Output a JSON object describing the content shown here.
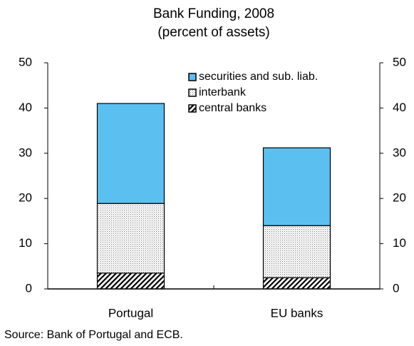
{
  "chart_data": {
    "type": "bar",
    "stacked": true,
    "title": "Bank Funding, 2008",
    "subtitle": "(percent of assets)",
    "source": "Source: Bank of Portugal and ECB.",
    "categories": [
      "Portugal",
      "EU banks"
    ],
    "series": [
      {
        "name": "central banks",
        "color": "#000000",
        "pattern": "hatch",
        "values": [
          3.5,
          2.5
        ]
      },
      {
        "name": "interbank",
        "color": "#808080",
        "pattern": "dots",
        "values": [
          15.4,
          11.5
        ]
      },
      {
        "name": "securities and sub. liab.",
        "color": "#5BC0F0",
        "pattern": "solid",
        "values": [
          22.1,
          17.2
        ]
      }
    ],
    "ylim": [
      0,
      50
    ],
    "yticks": [
      0,
      10,
      20,
      30,
      40,
      50
    ],
    "y2lim": [
      0,
      50
    ],
    "y2ticks": [
      0,
      10,
      20,
      30,
      40,
      50
    ],
    "grid": false
  }
}
